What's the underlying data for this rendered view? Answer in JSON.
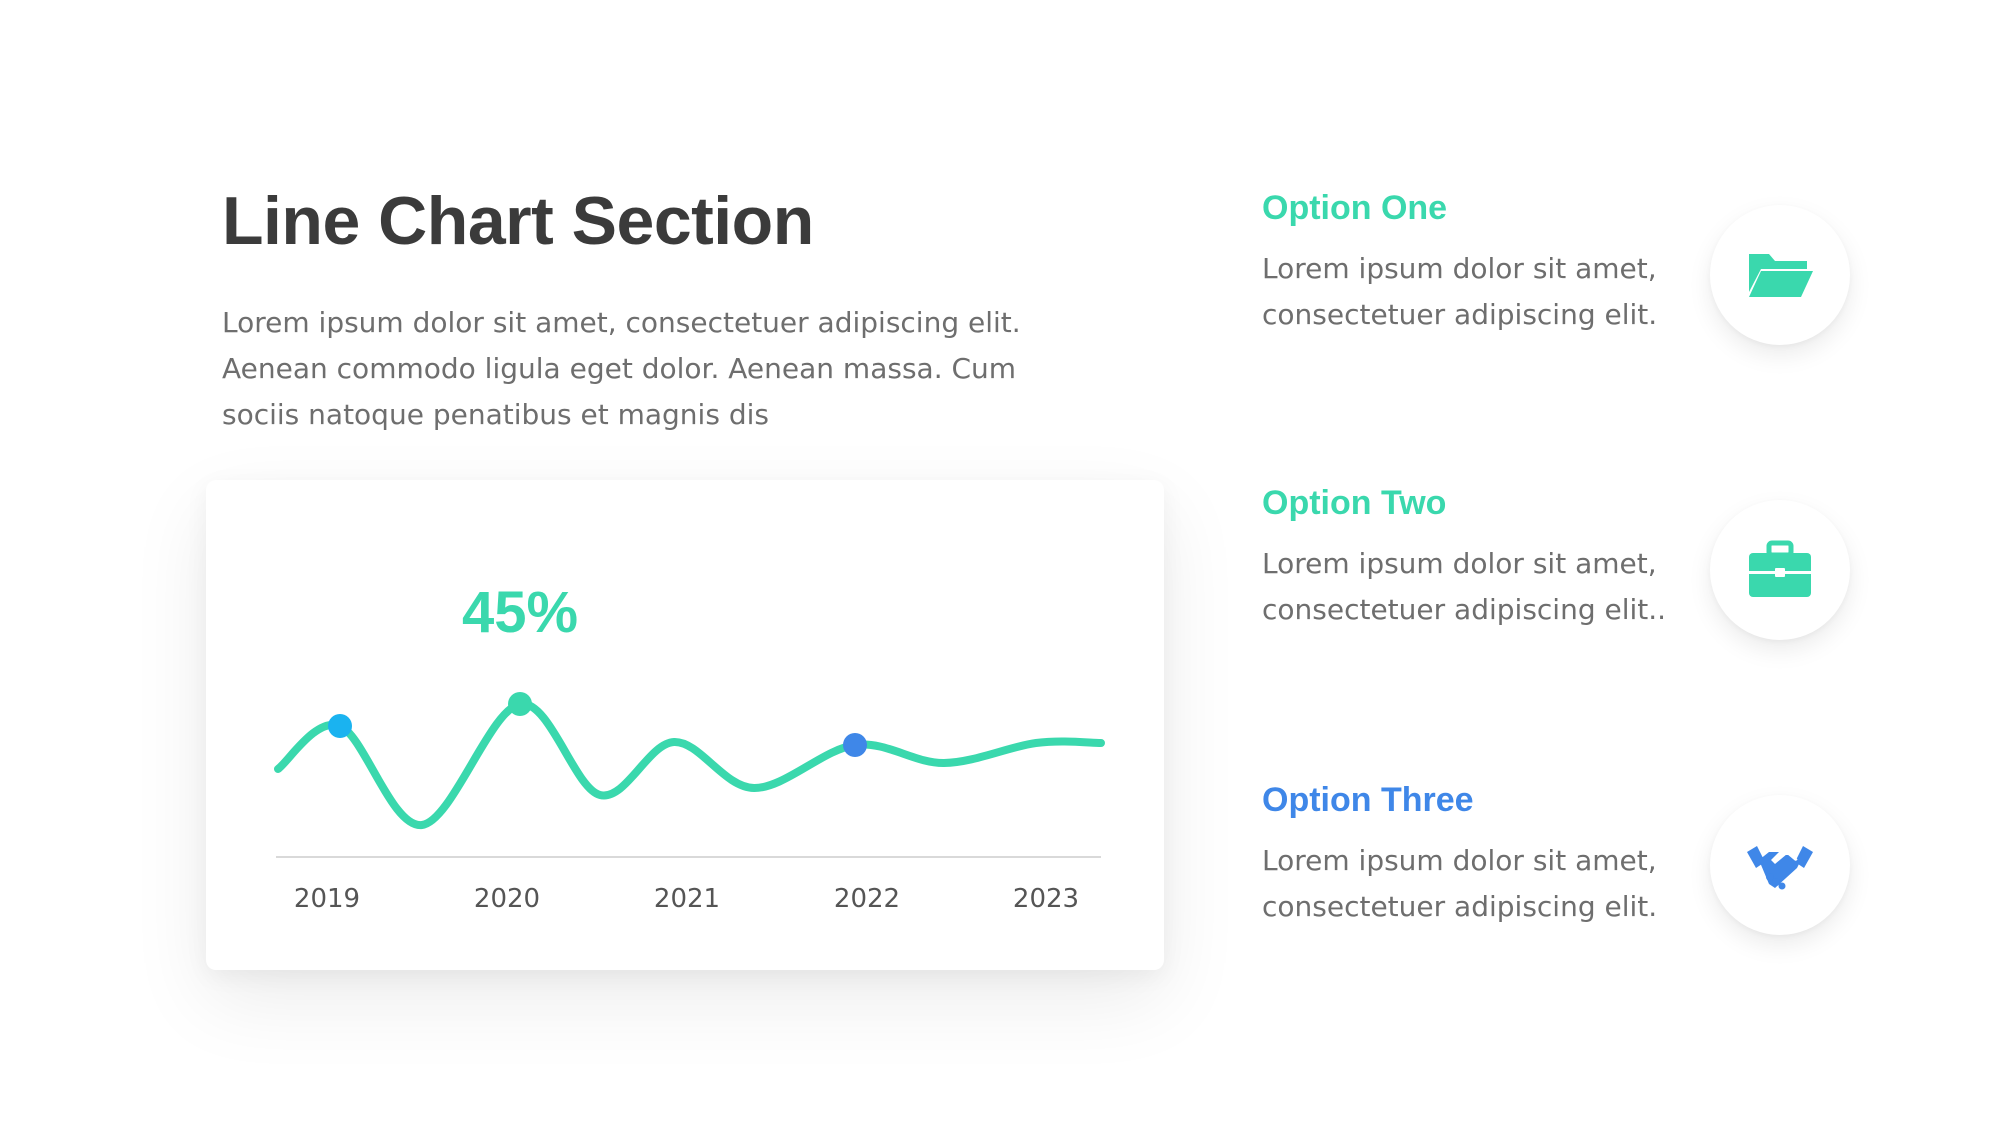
{
  "heading": {
    "title": "Line Chart Section",
    "description": "Lorem ipsum dolor sit amet, consectetuer adipiscing elit. Aenean commodo ligula eget dolor. Aenean massa. Cum sociis natoque penatibus et magnis dis"
  },
  "colors": {
    "teal": "#3ad8ad",
    "blue": "#3f87e8",
    "light_blue": "#1ab3f0",
    "axis": "#d9d9d9",
    "tick_text": "#555555"
  },
  "chart_data": {
    "type": "line",
    "categories": [
      "2019",
      "2020",
      "2021",
      "2022",
      "2023"
    ],
    "highlight_label": "45%",
    "grid": false,
    "legend": "none",
    "ylim": [
      0,
      60
    ]
  },
  "options": [
    {
      "title": "Option One",
      "text": "Lorem ipsum dolor sit amet, consectetuer adipiscing elit.",
      "icon": "folder-icon",
      "color": "#3ad8ad"
    },
    {
      "title": "Option Two",
      "text": "Lorem ipsum dolor sit amet, consectetuer adipiscing elit..",
      "icon": "briefcase-icon",
      "color": "#3ad8ad"
    },
    {
      "title": "Option Three",
      "text": "Lorem ipsum dolor sit amet, consectetuer adipiscing elit.",
      "icon": "handshake-icon",
      "color": "#3f87e8"
    }
  ]
}
